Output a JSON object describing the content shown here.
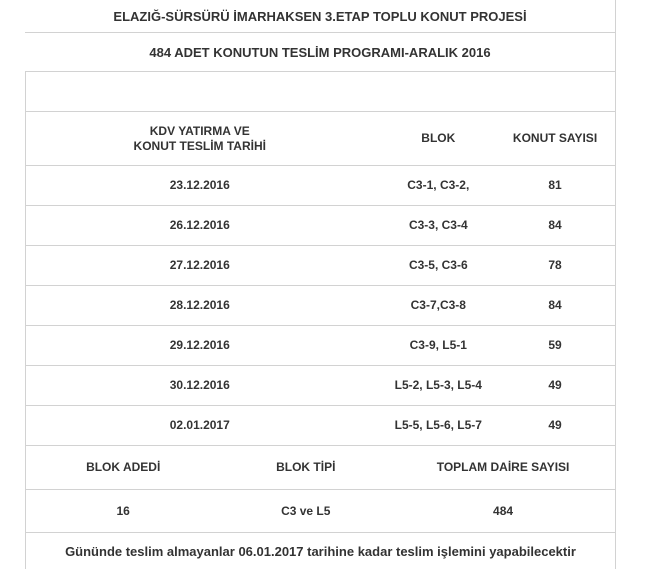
{
  "title": "ELAZIĞ-SÜRSÜRÜ İMARHAKSEN 3.ETAP TOPLU KONUT PROJESİ",
  "subtitle": "484 ADET KONUTUN TESLİM PROGRAMI-ARALIK 2016",
  "schedule_table": {
    "headers": {
      "date_line1": "KDV YATIRMA VE",
      "date_line2": "KONUT TESLİM TARİHİ",
      "blok": "BLOK",
      "konut_sayisi": "KONUT SAYISI"
    },
    "rows": [
      {
        "date": "23.12.2016",
        "blok": "C3-1, C3-2,",
        "konut_sayisi": "81"
      },
      {
        "date": "26.12.2016",
        "blok": "C3-3, C3-4",
        "konut_sayisi": "84"
      },
      {
        "date": "27.12.2016",
        "blok": "C3-5, C3-6",
        "konut_sayisi": "78"
      },
      {
        "date": "28.12.2016",
        "blok": "C3-7,C3-8",
        "konut_sayisi": "84"
      },
      {
        "date": "29.12.2016",
        "blok": "C3-9, L5-1",
        "konut_sayisi": "59"
      },
      {
        "date": "30.12.2016",
        "blok": "L5-2, L5-3, L5-4",
        "konut_sayisi": "49"
      },
      {
        "date": "02.01.2017",
        "blok": "L5-5, L5-6, L5-7",
        "konut_sayisi": "49"
      }
    ]
  },
  "summary_table": {
    "headers": {
      "blok_adedi": "BLOK ADEDİ",
      "blok_tipi": "BLOK TİPİ",
      "toplam_daire": "TOPLAM DAİRE SAYISI"
    },
    "row": {
      "blok_adedi": "16",
      "blok_tipi": "C3 ve L5",
      "toplam_daire": "484"
    }
  },
  "note": "Gününde teslim almayanlar 06.01.2017 tarihine kadar teslim işlemini yapabilecektir",
  "colors": {
    "text": "#333333",
    "border": "#d2d2d2",
    "background": "#ffffff"
  }
}
